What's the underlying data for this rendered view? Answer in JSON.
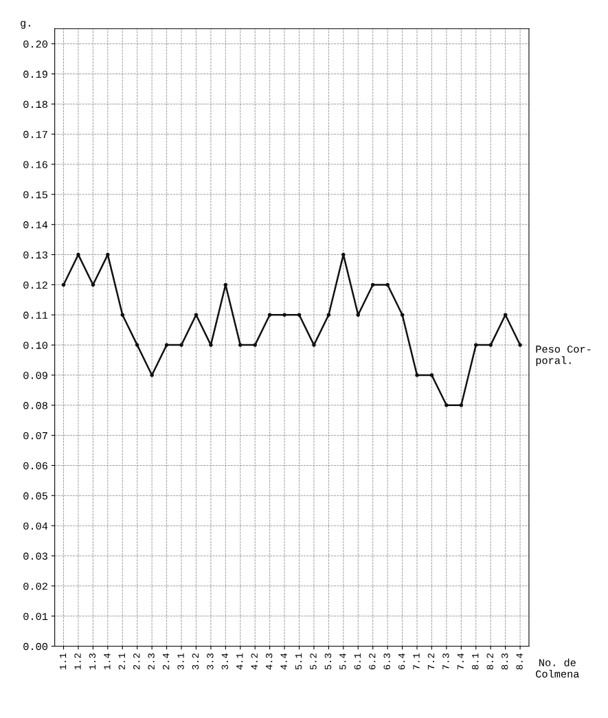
{
  "chart_data": {
    "type": "line",
    "ylabel": "g.",
    "xlabel": "No. de\nColmena",
    "categories": [
      "1.1",
      "1.2",
      "1.3",
      "1.4",
      "2.1",
      "2.2",
      "2.3",
      "2.4",
      "3.1",
      "3.2",
      "3.3",
      "3.4",
      "4.1",
      "4.2",
      "4.3",
      "4.4",
      "5.1",
      "5.2",
      "5.3",
      "5.4",
      "6.1",
      "6.2",
      "6.3",
      "6.4",
      "7.1",
      "7.2",
      "7.3",
      "7.4",
      "8.1",
      "8.2",
      "8.3",
      "8.4"
    ],
    "series": [
      {
        "color": "#111111",
        "values": [
          0.12,
          0.13,
          0.12,
          0.13,
          0.11,
          0.1,
          0.09,
          0.1,
          0.1,
          0.11,
          0.1,
          0.12,
          0.1,
          0.1,
          0.11,
          0.11,
          0.11,
          0.1,
          0.11,
          0.13,
          0.11,
          0.12,
          0.12,
          0.11,
          0.09,
          0.09,
          0.08,
          0.08,
          0.1,
          0.1,
          0.11,
          0.1
        ]
      }
    ],
    "annotations": [
      {
        "text": "Peso Cor-\nporal.",
        "x": "8.4",
        "y": 0.1
      }
    ],
    "ylim": [
      0,
      0.205
    ],
    "yticks": [
      {
        "value": 0,
        "label": "0.00"
      },
      {
        "value": 0.01,
        "label": "0.01"
      },
      {
        "value": 0.02,
        "label": "0.02"
      },
      {
        "value": 0.03,
        "label": "0.03"
      },
      {
        "value": 0.04,
        "label": "0.04"
      },
      {
        "value": 0.05,
        "label": "0.05"
      },
      {
        "value": 0.06,
        "label": "0.06"
      },
      {
        "value": 0.07,
        "label": "0.07"
      },
      {
        "value": 0.08,
        "label": "0.08"
      },
      {
        "value": 0.09,
        "label": "0.09"
      },
      {
        "value": 0.1,
        "label": "0.10"
      },
      {
        "value": 0.11,
        "label": "0.11"
      },
      {
        "value": 0.12,
        "label": "0.12"
      },
      {
        "value": 0.13,
        "label": "0.13"
      },
      {
        "value": 0.14,
        "label": "0.14"
      },
      {
        "value": 0.15,
        "label": "0.15"
      },
      {
        "value": 0.16,
        "label": "0.16"
      },
      {
        "value": 0.17,
        "label": "0.17"
      },
      {
        "value": 0.18,
        "label": "0.18"
      },
      {
        "value": 0.19,
        "label": "0.19"
      },
      {
        "value": 0.2,
        "label": "0.20"
      }
    ],
    "grid": true,
    "marker": "circle",
    "line_style": "solid"
  }
}
